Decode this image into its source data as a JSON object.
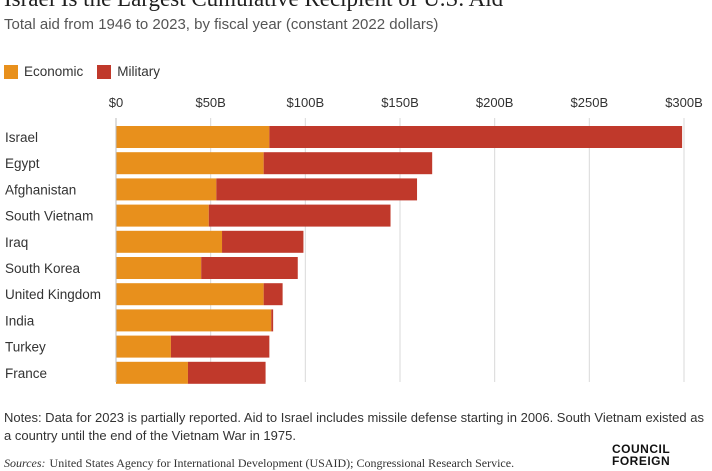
{
  "title": "Israel Is the Largest Cumulative Recipient of U.S. Aid",
  "subtitle": "Total aid from 1946 to 2023, by fiscal year (constant 2022 dollars)",
  "colors": {
    "economic": "#E8901C",
    "military": "#C0392B",
    "grid": "#D9D9D9"
  },
  "chart_data": {
    "type": "bar",
    "orientation": "horizontal",
    "stacked": true,
    "categories": [
      "Israel",
      "Egypt",
      "Afghanistan",
      "South Vietnam",
      "Iraq",
      "South Korea",
      "United Kingdom",
      "India",
      "Turkey",
      "France"
    ],
    "series": [
      {
        "name": "Economic",
        "values": [
          81,
          78,
          53,
          49,
          56,
          45,
          78,
          82,
          29,
          38
        ]
      },
      {
        "name": "Military",
        "values": [
          218,
          89,
          106,
          96,
          43,
          51,
          10,
          1,
          52,
          41
        ]
      }
    ],
    "xlim": [
      0,
      300
    ],
    "xticks": [
      "$0",
      "$50B",
      "$100B",
      "$150B",
      "$200B",
      "$250B",
      "$300B"
    ],
    "tick_values": [
      0,
      50,
      100,
      150,
      200,
      250,
      300
    ],
    "legend": "top-left",
    "grid": true
  },
  "notes": "Notes: Data for 2023 is partially reported. Aid to Israel includes missile defense starting in 2006. South Vietnam existed as a country until the end of the Vietnam War in 1975.",
  "sources_label": "Sources:",
  "sources_text": "United States Agency for International Development (USAID); Congressional Research Service.",
  "logo": {
    "line1": "COUNCIL",
    "line2": "FOREIGN"
  }
}
